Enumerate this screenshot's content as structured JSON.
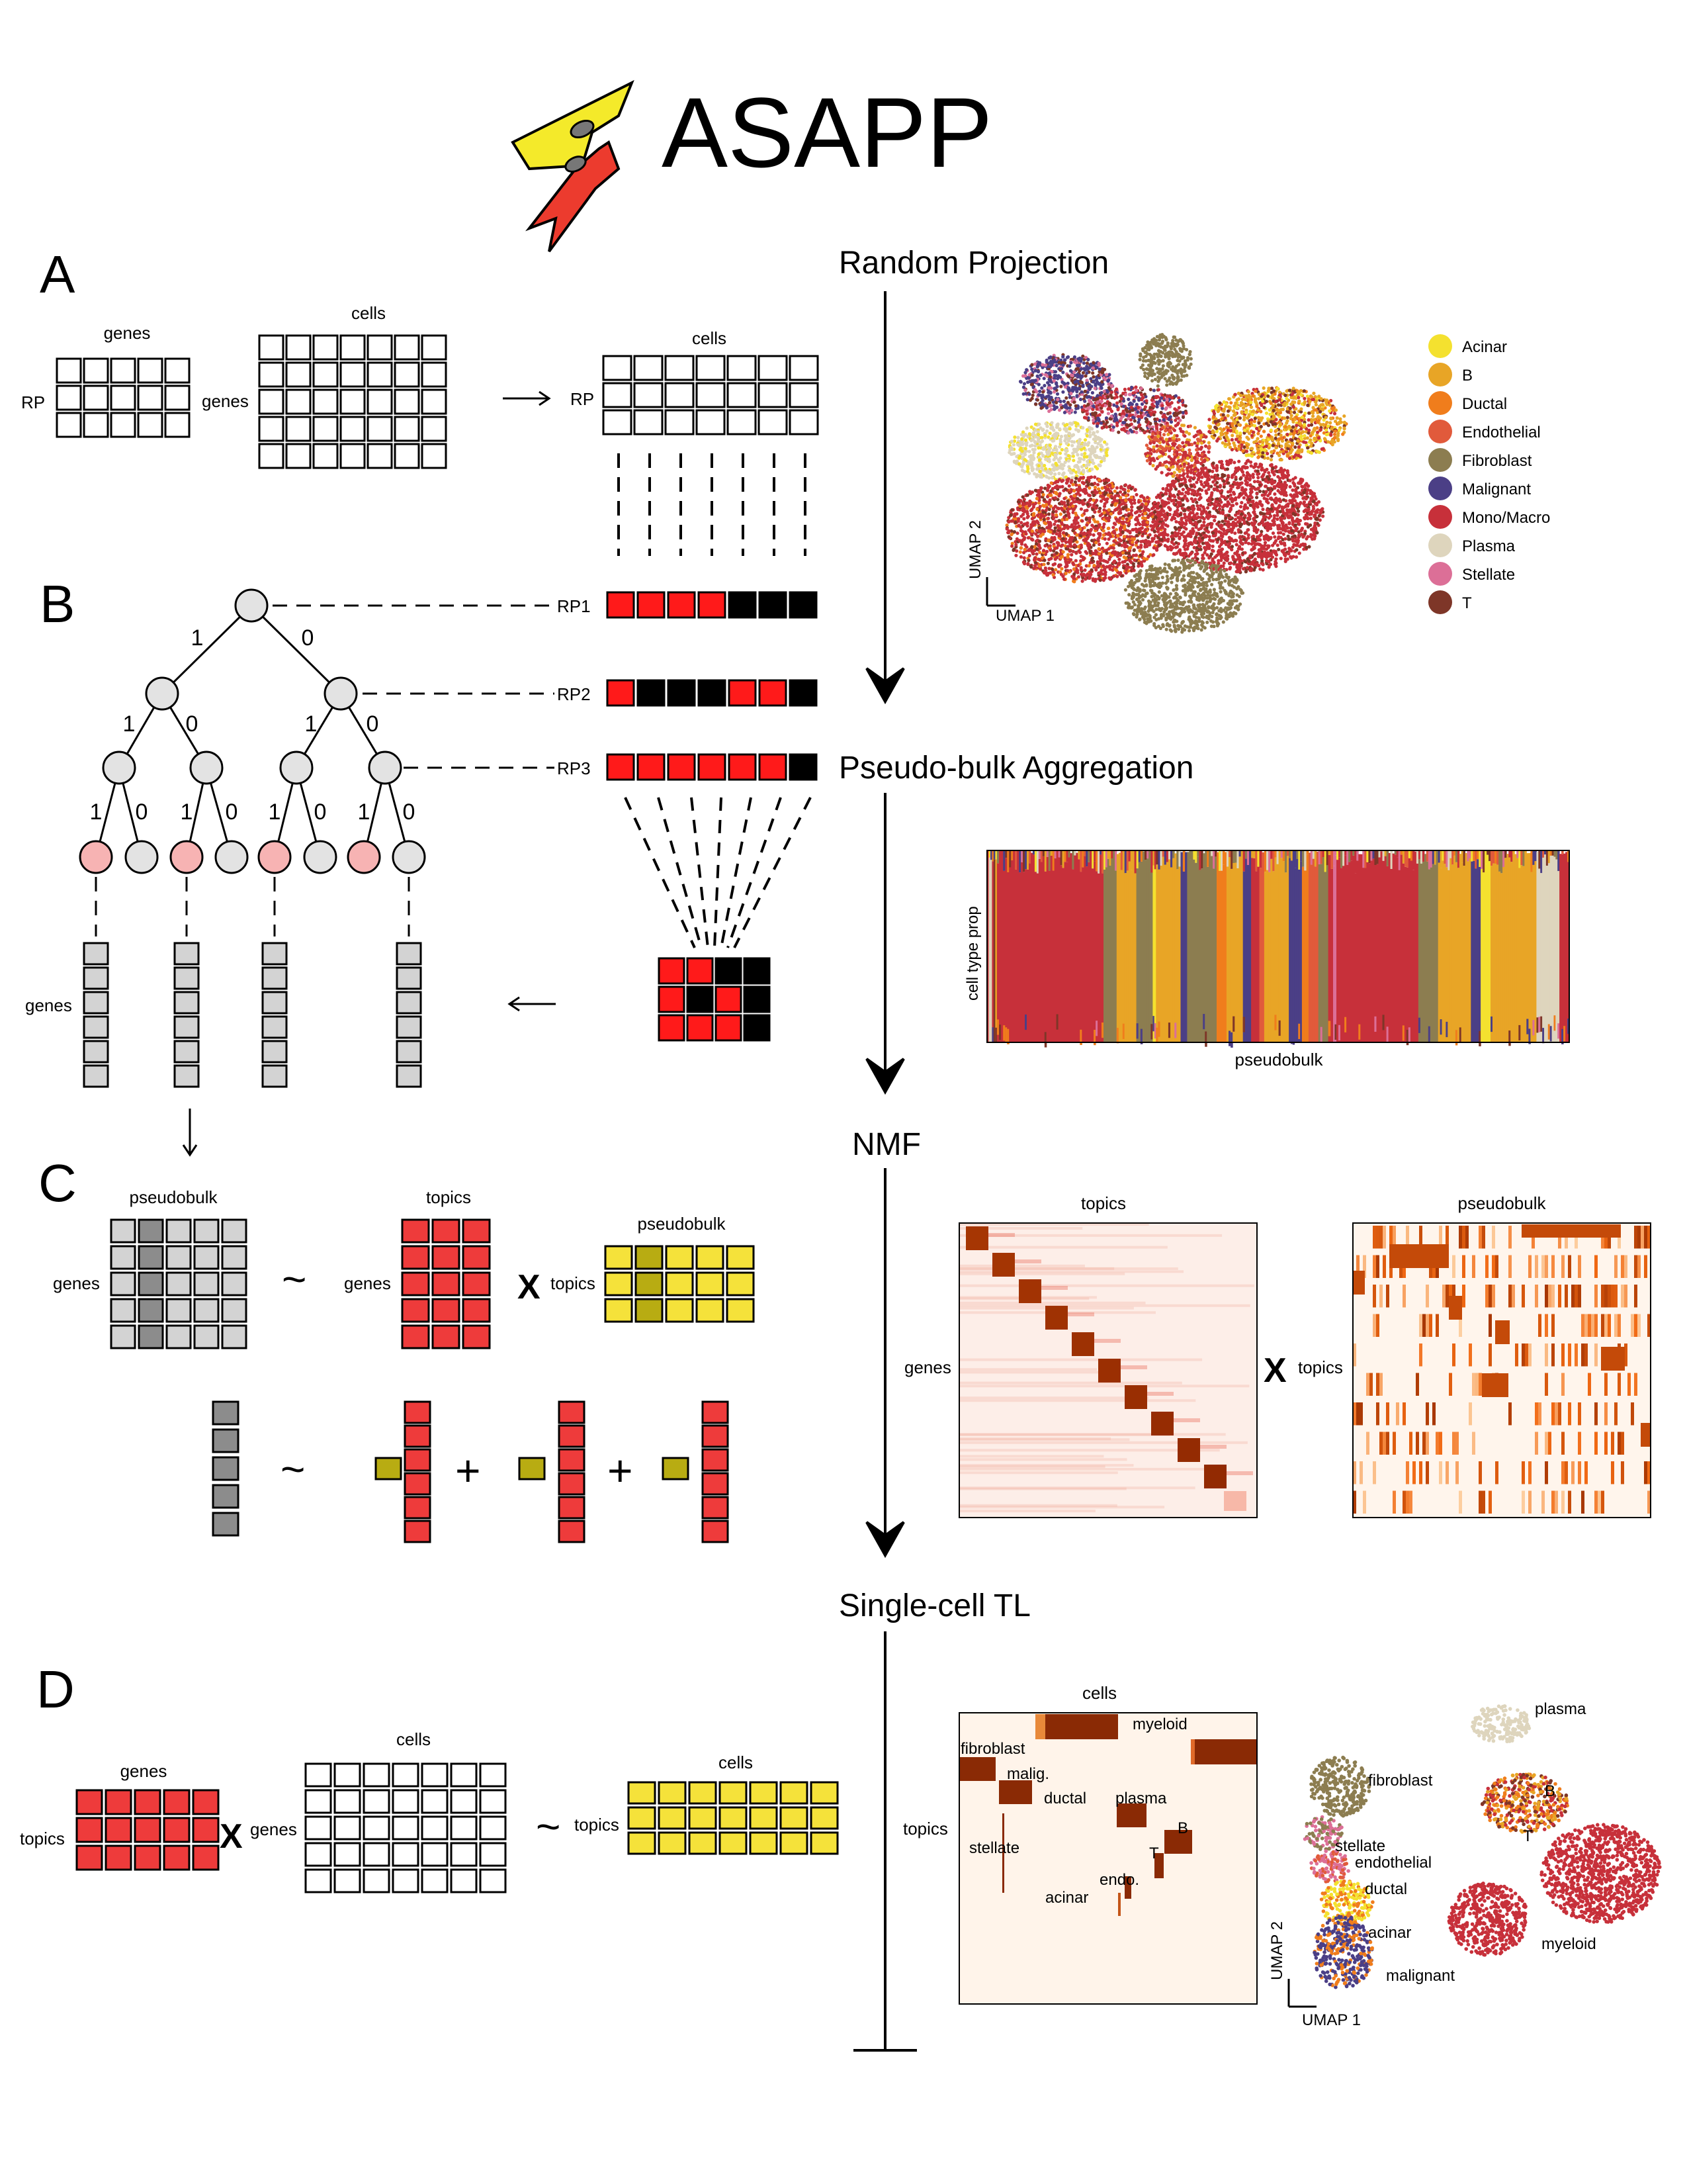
{
  "title": "ASAPP",
  "colors": {
    "red": "#ee3b3b",
    "red_bright": "#ff1a1a",
    "yellow": "#f5e23a",
    "olive": "#b8ac12",
    "grey": "#d3d3d3",
    "dark_grey": "#8c8c8c",
    "pink_node": "#f7b3b3",
    "node_grey": "#e3e3e3",
    "logo_yellow": "#f4ea2a",
    "logo_red": "#ec3b2e"
  },
  "pipeline": {
    "steps": [
      "Random Projection",
      "Pseudo-bulk Aggregation",
      "NMF",
      "Single-cell TL"
    ]
  },
  "panels": {
    "A": {
      "letter": "A",
      "genes_label": "genes",
      "cells_label": "cells",
      "rp_label": "RP",
      "genes_side": "genes",
      "cells_label2": "cells",
      "rp_label2": "RP"
    },
    "B": {
      "letter": "B",
      "rp_rows": [
        "RP1",
        "RP2",
        "RP3"
      ],
      "edge_one": "1",
      "edge_zero": "0",
      "genes_label": "genes"
    },
    "C": {
      "letter": "C",
      "pseudobulk": "pseudobulk",
      "topics": "topics",
      "genes": "genes",
      "genes2": "genes",
      "pseudobulk2": "pseudobulk",
      "topics2": "topics",
      "tilde": "~",
      "x": "X",
      "plus": "+"
    },
    "D": {
      "letter": "D",
      "genes": "genes",
      "topics": "topics",
      "cells": "cells",
      "genes2": "genes",
      "cells2": "cells",
      "topics2": "topics",
      "x": "X",
      "tilde": "~"
    }
  },
  "umap_legend": [
    {
      "name": "Acinar",
      "color": "#f4e12f"
    },
    {
      "name": "B",
      "color": "#e8a526"
    },
    {
      "name": "Ductal",
      "color": "#f07d1c"
    },
    {
      "name": "Endothelial",
      "color": "#e15a3b"
    },
    {
      "name": "Fibroblast",
      "color": "#8c7d50"
    },
    {
      "name": "Malignant",
      "color": "#4b3f86"
    },
    {
      "name": "Mono/Macro",
      "color": "#c7303a"
    },
    {
      "name": "Plasma",
      "color": "#ded5bd"
    },
    {
      "name": "Stellate",
      "color": "#dc6f97"
    },
    {
      "name": "T",
      "color": "#7e3628"
    }
  ],
  "umap_axes": {
    "x": "UMAP 1",
    "y": "UMAP 2"
  },
  "bar_plot": {
    "ylabel": "cell type  prop",
    "xlabel": "pseudobulk"
  },
  "heatmap_topics": {
    "title": "topics",
    "ylabel": "genes"
  },
  "heatmap_pseudobulk": {
    "title": "pseudobulk",
    "x_label": "topics"
  },
  "heatmap_cells": {
    "title": "cells",
    "ylabel": "topics",
    "labels": [
      "myeloid",
      "fibroblast",
      "malig.",
      "ductal",
      "plasma",
      "B",
      "stellate",
      "T",
      "endo.",
      "acinar"
    ]
  },
  "umap2": {
    "labels": [
      "plasma",
      "fibroblast",
      "B",
      "stellate",
      "endothelial",
      "T",
      "ductal",
      "acinar",
      "myeloid",
      "malignant"
    ],
    "x": "UMAP 1",
    "y": "UMAP 2"
  }
}
